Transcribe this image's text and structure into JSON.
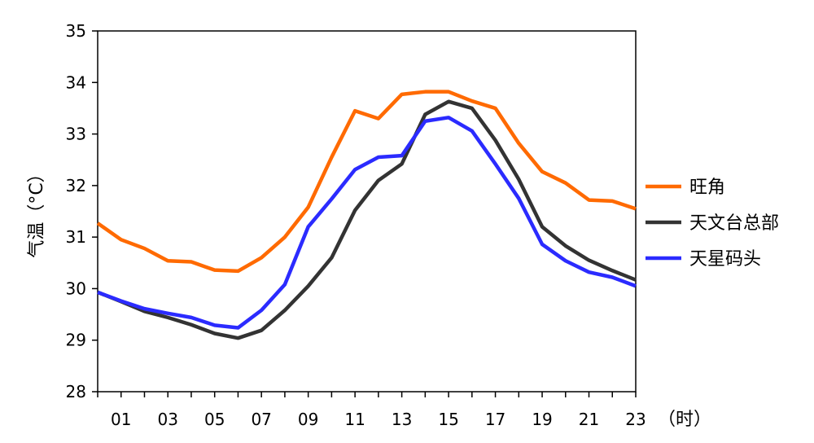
{
  "chart_data": {
    "type": "line",
    "title": "",
    "ylabel": "气温（°C）",
    "xlabel": "（时）",
    "ylim": [
      28,
      35
    ],
    "yticks": [
      "28",
      "29",
      "30",
      "31",
      "32",
      "33",
      "34",
      "35"
    ],
    "x": [
      0,
      1,
      2,
      3,
      4,
      5,
      6,
      7,
      8,
      9,
      10,
      11,
      12,
      13,
      14,
      15,
      16,
      17,
      18,
      19,
      20,
      21,
      22,
      23
    ],
    "xtick_labels": [
      "01",
      "03",
      "05",
      "07",
      "09",
      "11",
      "13",
      "15",
      "17",
      "19",
      "21",
      "23"
    ],
    "legend_position": "right",
    "series": [
      {
        "name": "旺角",
        "color": "#FF6A00",
        "values": [
          31.27,
          30.95,
          30.78,
          30.54,
          30.52,
          30.36,
          30.34,
          30.6,
          31.0,
          31.58,
          32.55,
          33.45,
          33.3,
          33.77,
          33.82,
          33.82,
          33.64,
          33.5,
          32.82,
          32.27,
          32.05,
          31.72,
          31.7,
          31.55
        ]
      },
      {
        "name": "天文台总部",
        "color": "#333333",
        "values": [
          29.93,
          29.75,
          29.56,
          29.44,
          29.3,
          29.13,
          29.04,
          29.19,
          29.58,
          30.05,
          30.6,
          31.52,
          32.1,
          32.42,
          33.38,
          33.63,
          33.5,
          32.88,
          32.12,
          31.2,
          30.83,
          30.55,
          30.35,
          30.17
        ]
      },
      {
        "name": "天星码头",
        "color": "#2B2BFF",
        "values": [
          29.93,
          29.76,
          29.61,
          29.52,
          29.44,
          29.29,
          29.24,
          29.58,
          30.08,
          31.2,
          31.74,
          32.31,
          32.55,
          32.58,
          33.25,
          33.32,
          33.06,
          32.42,
          31.75,
          30.86,
          30.54,
          30.32,
          30.22,
          30.05
        ]
      }
    ]
  }
}
